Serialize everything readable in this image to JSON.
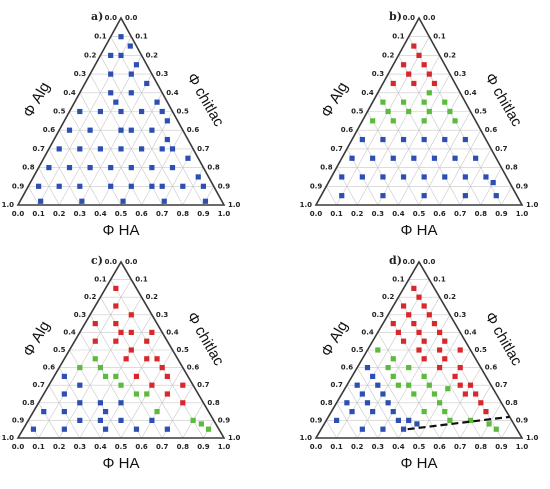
{
  "colors": {
    "blue": "#2d4fb4",
    "red": "#d8282c",
    "green": "#5cba3c",
    "grid": "#c8c8c8",
    "frame": "#3a3a3a"
  },
  "chart_data": [
    {
      "type": "scatter",
      "subtype": "ternary",
      "panel_label": "a)",
      "axis_labels": {
        "left": "Φ Alg",
        "right": "Φ chitlac",
        "bottom": "Φ HA"
      },
      "tick_labels": [
        "0.0",
        "0.1",
        "0.2",
        "0.3",
        "0.4",
        "0.5",
        "0.6",
        "0.7",
        "0.8",
        "0.9",
        "1.0"
      ],
      "series": [
        {
          "color": "blue",
          "points_ha_alg": [
            [
              0.05,
              0.9
            ],
            [
              0.1,
              0.8
            ],
            [
              0.05,
              0.8
            ],
            [
              0.1,
              0.7
            ],
            [
              0.2,
              0.7
            ],
            [
              0.15,
              0.6
            ],
            [
              0.25,
              0.6
            ],
            [
              0.05,
              0.5
            ],
            [
              0.15,
              0.5
            ],
            [
              0.25,
              0.5
            ],
            [
              0.35,
              0.5
            ],
            [
              0.05,
              0.4
            ],
            [
              0.15,
              0.4
            ],
            [
              0.3,
              0.4
            ],
            [
              0.45,
              0.4
            ],
            [
              0.05,
              0.3
            ],
            [
              0.15,
              0.3
            ],
            [
              0.25,
              0.3
            ],
            [
              0.35,
              0.3
            ],
            [
              0.45,
              0.3
            ],
            [
              0.55,
              0.3
            ],
            [
              0.05,
              0.2
            ],
            [
              0.15,
              0.2
            ],
            [
              0.25,
              0.2
            ],
            [
              0.35,
              0.2
            ],
            [
              0.45,
              0.2
            ],
            [
              0.55,
              0.2
            ],
            [
              0.65,
              0.2
            ],
            [
              0.05,
              0.1
            ],
            [
              0.15,
              0.1
            ],
            [
              0.25,
              0.1
            ],
            [
              0.4,
              0.1
            ],
            [
              0.5,
              0.1
            ],
            [
              0.6,
              0.1
            ],
            [
              0.75,
              0.1
            ],
            [
              0.85,
              0.1
            ],
            [
              0.1,
              0.02
            ],
            [
              0.3,
              0.02
            ],
            [
              0.5,
              0.02
            ],
            [
              0.7,
              0.02
            ],
            [
              0.9,
              0.02
            ],
            [
              0.5,
              0.45
            ],
            [
              0.4,
              0.55
            ],
            [
              0.55,
              0.35
            ],
            [
              0.7,
              0.25
            ],
            [
              0.8,
              0.15
            ],
            [
              0.3,
              0.65
            ],
            [
              0.2,
              0.75
            ],
            [
              0.12,
              0.85
            ],
            [
              0.6,
              0.3
            ],
            [
              0.65,
              0.1
            ],
            [
              0.35,
              0.4
            ],
            [
              0.45,
              0.5
            ],
            [
              0.2,
              0.55
            ]
          ]
        }
      ]
    },
    {
      "type": "scatter",
      "subtype": "ternary",
      "panel_label": "b)",
      "axis_labels": {
        "left": "Φ Alg",
        "right": "Φ chitlac",
        "bottom": "Φ HA"
      },
      "tick_labels": [
        "0.0",
        "0.1",
        "0.2",
        "0.3",
        "0.4",
        "0.5",
        "0.6",
        "0.7",
        "0.8",
        "0.9",
        "1.0"
      ],
      "series": [
        {
          "color": "red",
          "points_ha_alg": [
            [
              0.05,
              0.85
            ],
            [
              0.1,
              0.8
            ],
            [
              0.05,
              0.75
            ],
            [
              0.15,
              0.75
            ],
            [
              0.1,
              0.7
            ],
            [
              0.2,
              0.7
            ],
            [
              0.05,
              0.65
            ],
            [
              0.15,
              0.65
            ],
            [
              0.25,
              0.65
            ]
          ]
        },
        {
          "color": "green",
          "points_ha_alg": [
            [
              0.05,
              0.55
            ],
            [
              0.15,
              0.55
            ],
            [
              0.25,
              0.55
            ],
            [
              0.35,
              0.55
            ],
            [
              0.1,
              0.5
            ],
            [
              0.2,
              0.5
            ],
            [
              0.3,
              0.5
            ],
            [
              0.4,
              0.5
            ],
            [
              0.05,
              0.45
            ],
            [
              0.15,
              0.45
            ],
            [
              0.3,
              0.45
            ],
            [
              0.45,
              0.45
            ],
            [
              0.25,
              0.6
            ]
          ]
        },
        {
          "color": "blue",
          "points_ha_alg": [
            [
              0.05,
              0.35
            ],
            [
              0.15,
              0.35
            ],
            [
              0.25,
              0.35
            ],
            [
              0.35,
              0.35
            ],
            [
              0.45,
              0.35
            ],
            [
              0.55,
              0.35
            ],
            [
              0.05,
              0.25
            ],
            [
              0.15,
              0.25
            ],
            [
              0.25,
              0.25
            ],
            [
              0.35,
              0.25
            ],
            [
              0.45,
              0.25
            ],
            [
              0.55,
              0.25
            ],
            [
              0.65,
              0.25
            ],
            [
              0.05,
              0.15
            ],
            [
              0.15,
              0.15
            ],
            [
              0.25,
              0.15
            ],
            [
              0.35,
              0.15
            ],
            [
              0.45,
              0.15
            ],
            [
              0.55,
              0.15
            ],
            [
              0.65,
              0.15
            ],
            [
              0.75,
              0.15
            ],
            [
              0.1,
              0.05
            ],
            [
              0.3,
              0.05
            ],
            [
              0.5,
              0.05
            ],
            [
              0.7,
              0.05
            ],
            [
              0.85,
              0.05
            ],
            [
              0.8,
              0.12
            ]
          ]
        }
      ]
    },
    {
      "type": "scatter",
      "subtype": "ternary",
      "panel_label": "c)",
      "axis_labels": {
        "left": "Φ Alg",
        "right": "Φ chitlac",
        "bottom": "Φ HA"
      },
      "tick_labels": [
        "0.0",
        "0.1",
        "0.2",
        "0.3",
        "0.4",
        "0.5",
        "0.6",
        "0.7",
        "0.8",
        "0.9",
        "1.0"
      ],
      "series": [
        {
          "color": "red",
          "points_ha_alg": [
            [
              0.05,
              0.85
            ],
            [
              0.1,
              0.75
            ],
            [
              0.2,
              0.7
            ],
            [
              0.05,
              0.65
            ],
            [
              0.15,
              0.65
            ],
            [
              0.25,
              0.6
            ],
            [
              0.35,
              0.55
            ],
            [
              0.1,
              0.55
            ],
            [
              0.2,
              0.55
            ],
            [
              0.3,
              0.5
            ],
            [
              0.4,
              0.45
            ],
            [
              0.5,
              0.4
            ],
            [
              0.3,
              0.45
            ],
            [
              0.4,
              0.35
            ],
            [
              0.5,
              0.3
            ],
            [
              0.6,
              0.25
            ],
            [
              0.7,
              0.2
            ],
            [
              0.45,
              0.45
            ],
            [
              0.55,
              0.35
            ],
            [
              0.65,
              0.3
            ],
            [
              0.2,
              0.6
            ],
            [
              0.35,
              0.6
            ]
          ]
        },
        {
          "color": "green",
          "points_ha_alg": [
            [
              0.15,
              0.45
            ],
            [
              0.2,
              0.4
            ],
            [
              0.1,
              0.4
            ],
            [
              0.3,
              0.35
            ],
            [
              0.35,
              0.3
            ],
            [
              0.45,
              0.25
            ],
            [
              0.5,
              0.25
            ],
            [
              0.6,
              0.15
            ],
            [
              0.8,
              0.1
            ],
            [
              0.85,
              0.08
            ],
            [
              0.9,
              0.05
            ],
            [
              0.25,
              0.35
            ]
          ]
        },
        {
          "color": "blue",
          "points_ha_alg": [
            [
              0.05,
              0.35
            ],
            [
              0.15,
              0.3
            ],
            [
              0.1,
              0.25
            ],
            [
              0.2,
              0.2
            ],
            [
              0.3,
              0.2
            ],
            [
              0.05,
              0.15
            ],
            [
              0.15,
              0.15
            ],
            [
              0.25,
              0.1
            ],
            [
              0.35,
              0.1
            ],
            [
              0.45,
              0.1
            ],
            [
              0.05,
              0.05
            ],
            [
              0.2,
              0.05
            ],
            [
              0.4,
              0.05
            ],
            [
              0.55,
              0.05
            ],
            [
              0.7,
              0.05
            ],
            [
              0.4,
              0.2
            ],
            [
              0.35,
              0.15
            ],
            [
              0.6,
              0.1
            ]
          ]
        }
      ]
    },
    {
      "type": "scatter",
      "subtype": "ternary",
      "panel_label": "d)",
      "axis_labels": {
        "left": "Φ Alg",
        "right": "Φ chitlac",
        "bottom": "Φ HA"
      },
      "tick_labels": [
        "0.0",
        "0.1",
        "0.2",
        "0.3",
        "0.4",
        "0.5",
        "0.6",
        "0.7",
        "0.8",
        "0.9",
        "1.0"
      ],
      "boundary_line_ha_alg": [
        [
          0.42,
          0.05
        ],
        [
          0.88,
          0.12
        ]
      ],
      "series": [
        {
          "color": "red",
          "points_ha_alg": [
            [
              0.05,
              0.85
            ],
            [
              0.1,
              0.8
            ],
            [
              0.05,
              0.75
            ],
            [
              0.15,
              0.75
            ],
            [
              0.1,
              0.7
            ],
            [
              0.2,
              0.7
            ],
            [
              0.05,
              0.65
            ],
            [
              0.15,
              0.65
            ],
            [
              0.25,
              0.65
            ],
            [
              0.1,
              0.6
            ],
            [
              0.2,
              0.6
            ],
            [
              0.3,
              0.6
            ],
            [
              0.15,
              0.55
            ],
            [
              0.25,
              0.55
            ],
            [
              0.35,
              0.55
            ],
            [
              0.25,
              0.5
            ],
            [
              0.35,
              0.5
            ],
            [
              0.45,
              0.5
            ],
            [
              0.3,
              0.45
            ],
            [
              0.4,
              0.45
            ],
            [
              0.5,
              0.4
            ],
            [
              0.4,
              0.4
            ],
            [
              0.5,
              0.35
            ],
            [
              0.6,
              0.3
            ],
            [
              0.55,
              0.3
            ],
            [
              0.65,
              0.25
            ],
            [
              0.7,
              0.2
            ],
            [
              0.6,
              0.25
            ],
            [
              0.75,
              0.15
            ]
          ]
        },
        {
          "color": "green",
          "points_ha_alg": [
            [
              0.05,
              0.5
            ],
            [
              0.15,
              0.45
            ],
            [
              0.25,
              0.4
            ],
            [
              0.35,
              0.35
            ],
            [
              0.2,
              0.35
            ],
            [
              0.3,
              0.3
            ],
            [
              0.4,
              0.3
            ],
            [
              0.45,
              0.25
            ],
            [
              0.35,
              0.25
            ],
            [
              0.5,
              0.2
            ],
            [
              0.55,
              0.15
            ],
            [
              0.6,
              0.1
            ],
            [
              0.7,
              0.1
            ],
            [
              0.8,
              0.08
            ],
            [
              0.85,
              0.05
            ],
            [
              0.45,
              0.15
            ],
            [
              0.5,
              0.28
            ],
            [
              0.25,
              0.3
            ],
            [
              0.15,
              0.4
            ]
          ]
        },
        {
          "color": "blue",
          "points_ha_alg": [
            [
              0.05,
              0.4
            ],
            [
              0.1,
              0.35
            ],
            [
              0.05,
              0.3
            ],
            [
              0.15,
              0.3
            ],
            [
              0.1,
              0.25
            ],
            [
              0.2,
              0.25
            ],
            [
              0.05,
              0.2
            ],
            [
              0.15,
              0.2
            ],
            [
              0.25,
              0.2
            ],
            [
              0.1,
              0.15
            ],
            [
              0.2,
              0.15
            ],
            [
              0.3,
              0.15
            ],
            [
              0.35,
              0.1
            ],
            [
              0.4,
              0.1
            ],
            [
              0.45,
              0.08
            ],
            [
              0.4,
              0.05
            ],
            [
              0.3,
              0.05
            ],
            [
              0.2,
              0.05
            ],
            [
              0.05,
              0.1
            ]
          ]
        }
      ]
    }
  ]
}
